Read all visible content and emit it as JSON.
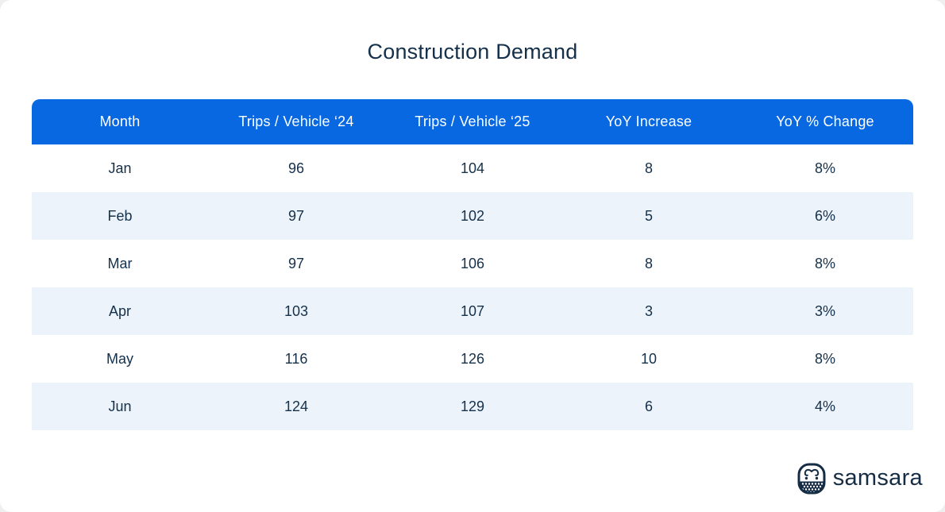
{
  "page": {
    "title": "Construction Demand"
  },
  "chart_data": {
    "type": "table",
    "title": "Construction Demand",
    "columns": [
      "Month",
      "Trips / Vehicle ‘24",
      "Trips / Vehicle ‘25",
      "YoY Increase",
      "YoY % Change"
    ],
    "rows": [
      [
        "Jan",
        "96",
        "104",
        "8",
        "8%"
      ],
      [
        "Feb",
        "97",
        "102",
        "5",
        "6%"
      ],
      [
        "Mar",
        "97",
        "106",
        "8",
        "8%"
      ],
      [
        "Apr",
        "103",
        "107",
        "3",
        "3%"
      ],
      [
        "May",
        "116",
        "126",
        "10",
        "8%"
      ],
      [
        "Jun",
        "124",
        "129",
        "6",
        "4%"
      ]
    ],
    "layout": {
      "striped_rows": true,
      "stripe_start": "second_row",
      "alignment": "center"
    }
  },
  "branding": {
    "wordmark": "samsara",
    "logo_icon": "samsara-owl-icon"
  },
  "colors": {
    "header_bg": "#0768E2",
    "header_text": "#FFFFFF",
    "stripe_bg": "#EDF3FB",
    "cell_text": "#14304A",
    "title_text": "#14304A",
    "logo_color": "#142C44"
  }
}
